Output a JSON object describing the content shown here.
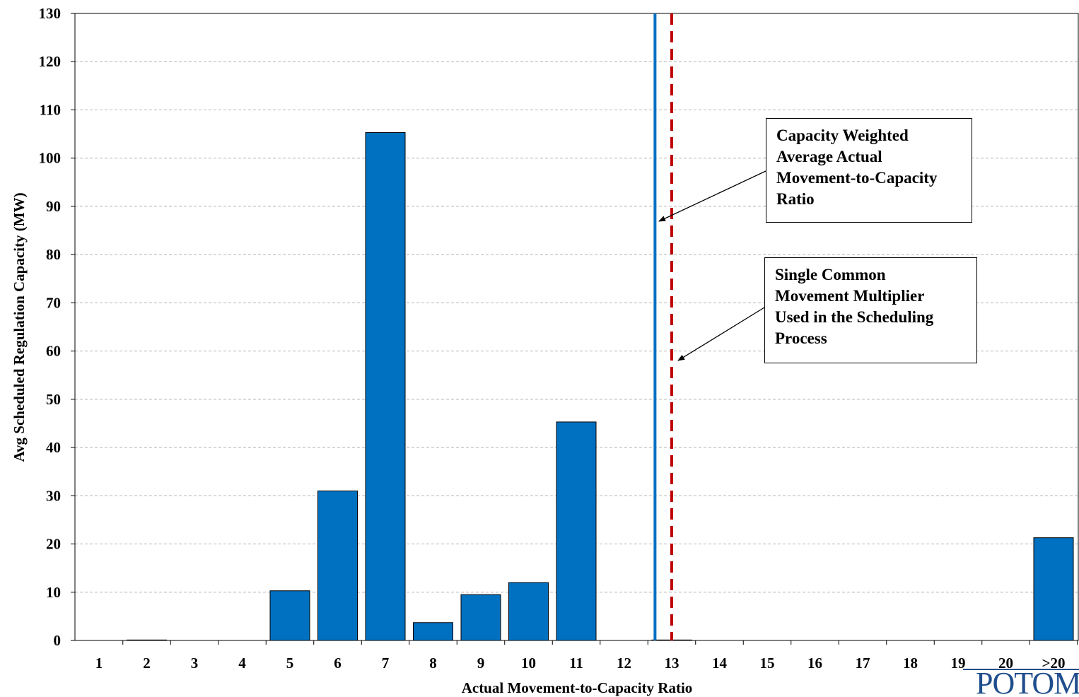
{
  "chart_data": {
    "type": "bar",
    "categories": [
      "1",
      "2",
      "3",
      "4",
      "5",
      "6",
      "7",
      "8",
      "9",
      "10",
      "11",
      "12",
      "13",
      "14",
      "15",
      "16",
      "17",
      "18",
      "19",
      "20",
      ">20"
    ],
    "values": [
      0,
      0.1,
      0,
      0,
      10.3,
      31.0,
      105.3,
      3.7,
      9.5,
      12.0,
      45.3,
      0,
      0.1,
      0,
      0,
      0,
      0,
      0,
      0,
      0,
      21.3
    ],
    "xlabel": "Actual Movement-to-Capacity Ratio",
    "ylabel": "Avg Scheduled Regulation Capacity (MW)",
    "ylim": [
      0,
      130
    ],
    "yticks": [
      0,
      10,
      20,
      30,
      40,
      50,
      60,
      70,
      80,
      90,
      100,
      110,
      120,
      130
    ],
    "grid": true,
    "bar_color": "#0070C0",
    "reference_lines": [
      {
        "x": 12.65,
        "style": "solid",
        "color": "#0070C0"
      },
      {
        "x": 13.0,
        "style": "dashed",
        "color": "#C00000"
      }
    ]
  },
  "annotations": {
    "capacity_weighted": {
      "lines": [
        "Capacity Weighted",
        "Average Actual",
        "Movement-to-Capacity",
        "Ratio"
      ]
    },
    "single_common": {
      "lines": [
        "Single Common",
        "Movement Multiplier",
        "Used in the Scheduling",
        "Process"
      ]
    }
  },
  "logo": {
    "text": "POTOMAC"
  }
}
